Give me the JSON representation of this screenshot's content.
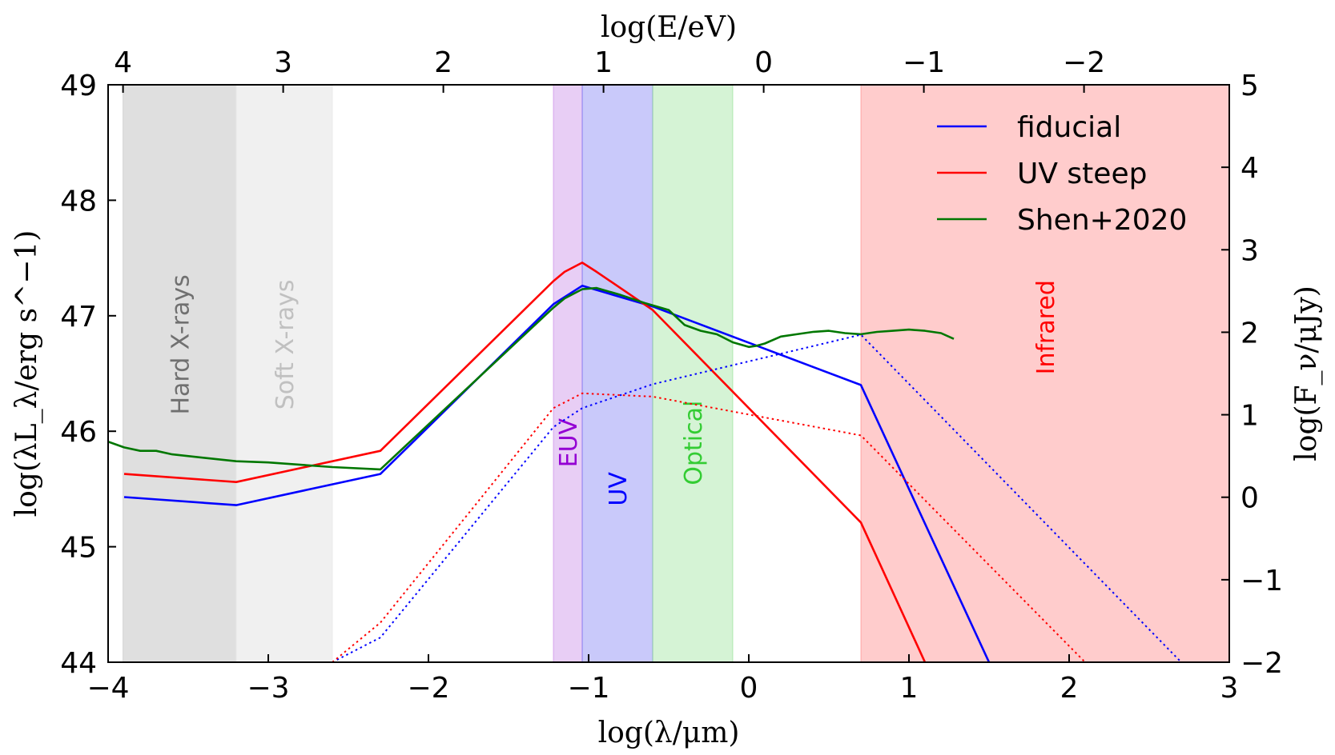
{
  "chart_data": {
    "type": "line",
    "xlabel": "log(λ/μm)",
    "ylabel": "log(λL_λ/erg s^−1)",
    "top_xlabel": "log(E/eV)",
    "right_ylabel": "log(F_ν/μJy)",
    "xlim": [
      -4,
      3
    ],
    "ylim": [
      44,
      49
    ],
    "right_ylim": [
      -2,
      5
    ],
    "top_xlim": [
      4.093,
      -2.907
    ],
    "x_ticks": [
      -4,
      -3,
      -2,
      -1,
      0,
      1,
      2,
      3
    ],
    "x_tick_labels": [
      "−4",
      "−3",
      "−2",
      "−1",
      "0",
      "1",
      "2",
      "3"
    ],
    "y_ticks": [
      44,
      45,
      46,
      47,
      48,
      49
    ],
    "y_tick_labels": [
      "44",
      "45",
      "46",
      "47",
      "48",
      "49"
    ],
    "right_y_ticks": [
      -2,
      -1,
      0,
      1,
      2,
      3,
      4,
      5
    ],
    "right_y_tick_labels": [
      "−2",
      "−1",
      "0",
      "1",
      "2",
      "3",
      "4",
      "5"
    ],
    "top_x_ticks": [
      4,
      3,
      2,
      1,
      0,
      -1,
      -2
    ],
    "top_x_tick_labels": [
      "4",
      "3",
      "2",
      "1",
      "0",
      "−1",
      "−2"
    ],
    "legend_position": "top-right",
    "bands": [
      {
        "label": "Hard X-rays",
        "x": [
          -3.907,
          -3.2
        ],
        "fill": "#d2d2d2",
        "text_color": "#707070",
        "opacity": 0.7
      },
      {
        "label": "Soft X-rays",
        "x": [
          -3.2,
          -2.6
        ],
        "fill": "#e9e9e9",
        "text_color": "#c0c0c0",
        "opacity": 0.7
      },
      {
        "label": "EUV",
        "x": [
          -1.22,
          -1.04
        ],
        "fill": "#c27ee4",
        "text_color": "#9400d3",
        "opacity": 0.38
      },
      {
        "label": "UV",
        "x": [
          -1.04,
          -0.6
        ],
        "fill": "#5a5af0",
        "text_color": "#0000ff",
        "opacity": 0.33
      },
      {
        "label": "Optical",
        "x": [
          -0.6,
          -0.1
        ],
        "fill": "#7edb7e",
        "text_color": "#33cc33",
        "opacity": 0.33
      },
      {
        "label": "Infrared",
        "x": [
          0.7,
          3.0
        ],
        "fill": "#ff7a7a",
        "text_color": "#ff0000",
        "opacity": 0.38
      }
    ],
    "series": [
      {
        "name": "fiducial",
        "color": "#0000ff",
        "style": "solid",
        "axis": "left",
        "x": [
          -3.9,
          -3.2,
          -2.3,
          -1.22,
          -1.04,
          -0.6,
          0.7,
          1.5
        ],
        "y": [
          45.43,
          45.36,
          45.63,
          47.1,
          47.26,
          47.08,
          46.4,
          44.0
        ]
      },
      {
        "name": "UV steep",
        "color": "#ff0000",
        "style": "solid",
        "axis": "left",
        "x": [
          -3.9,
          -3.2,
          -2.3,
          -1.22,
          -1.15,
          -1.04,
          -0.95,
          -0.6,
          0.7,
          1.1
        ],
        "y": [
          45.63,
          45.56,
          45.83,
          47.3,
          47.38,
          47.46,
          47.38,
          47.05,
          45.21,
          44.0
        ]
      },
      {
        "name": "Shen+2020",
        "color": "#007700",
        "style": "solid",
        "axis": "left",
        "x": [
          -4.0,
          -3.9,
          -3.8,
          -3.7,
          -3.6,
          -3.4,
          -3.2,
          -3.0,
          -2.6,
          -2.3,
          -1.22,
          -1.15,
          -1.04,
          -0.95,
          -0.8,
          -0.65,
          -0.5,
          -0.4,
          -0.3,
          -0.2,
          -0.1,
          0.0,
          0.05,
          0.1,
          0.2,
          0.3,
          0.4,
          0.5,
          0.6,
          0.7,
          0.8,
          0.9,
          1.0,
          1.1,
          1.2,
          1.28
        ],
        "y": [
          45.91,
          45.86,
          45.83,
          45.83,
          45.8,
          45.77,
          45.74,
          45.73,
          45.69,
          45.67,
          47.07,
          47.15,
          47.23,
          47.24,
          47.18,
          47.11,
          47.05,
          46.92,
          46.87,
          46.84,
          46.77,
          46.73,
          46.74,
          46.76,
          46.82,
          46.84,
          46.86,
          46.87,
          46.85,
          46.84,
          46.86,
          46.87,
          46.88,
          46.87,
          46.85,
          46.8
        ]
      },
      {
        "name": "",
        "color": "#0000ff",
        "style": "dotted",
        "axis": "right",
        "x": [
          -2.6,
          -2.3,
          -1.22,
          -1.04,
          -0.6,
          0.7,
          2.7
        ],
        "y": [
          -2.0,
          -1.7,
          0.85,
          1.08,
          1.37,
          1.97,
          -2.0
        ]
      },
      {
        "name": "",
        "color": "#ff0000",
        "style": "dotted",
        "axis": "right",
        "x": [
          -2.6,
          -2.3,
          -1.22,
          -1.04,
          -0.6,
          0.7,
          2.1
        ],
        "y": [
          -2.0,
          -1.52,
          1.08,
          1.26,
          1.22,
          0.75,
          -2.0
        ]
      }
    ]
  }
}
